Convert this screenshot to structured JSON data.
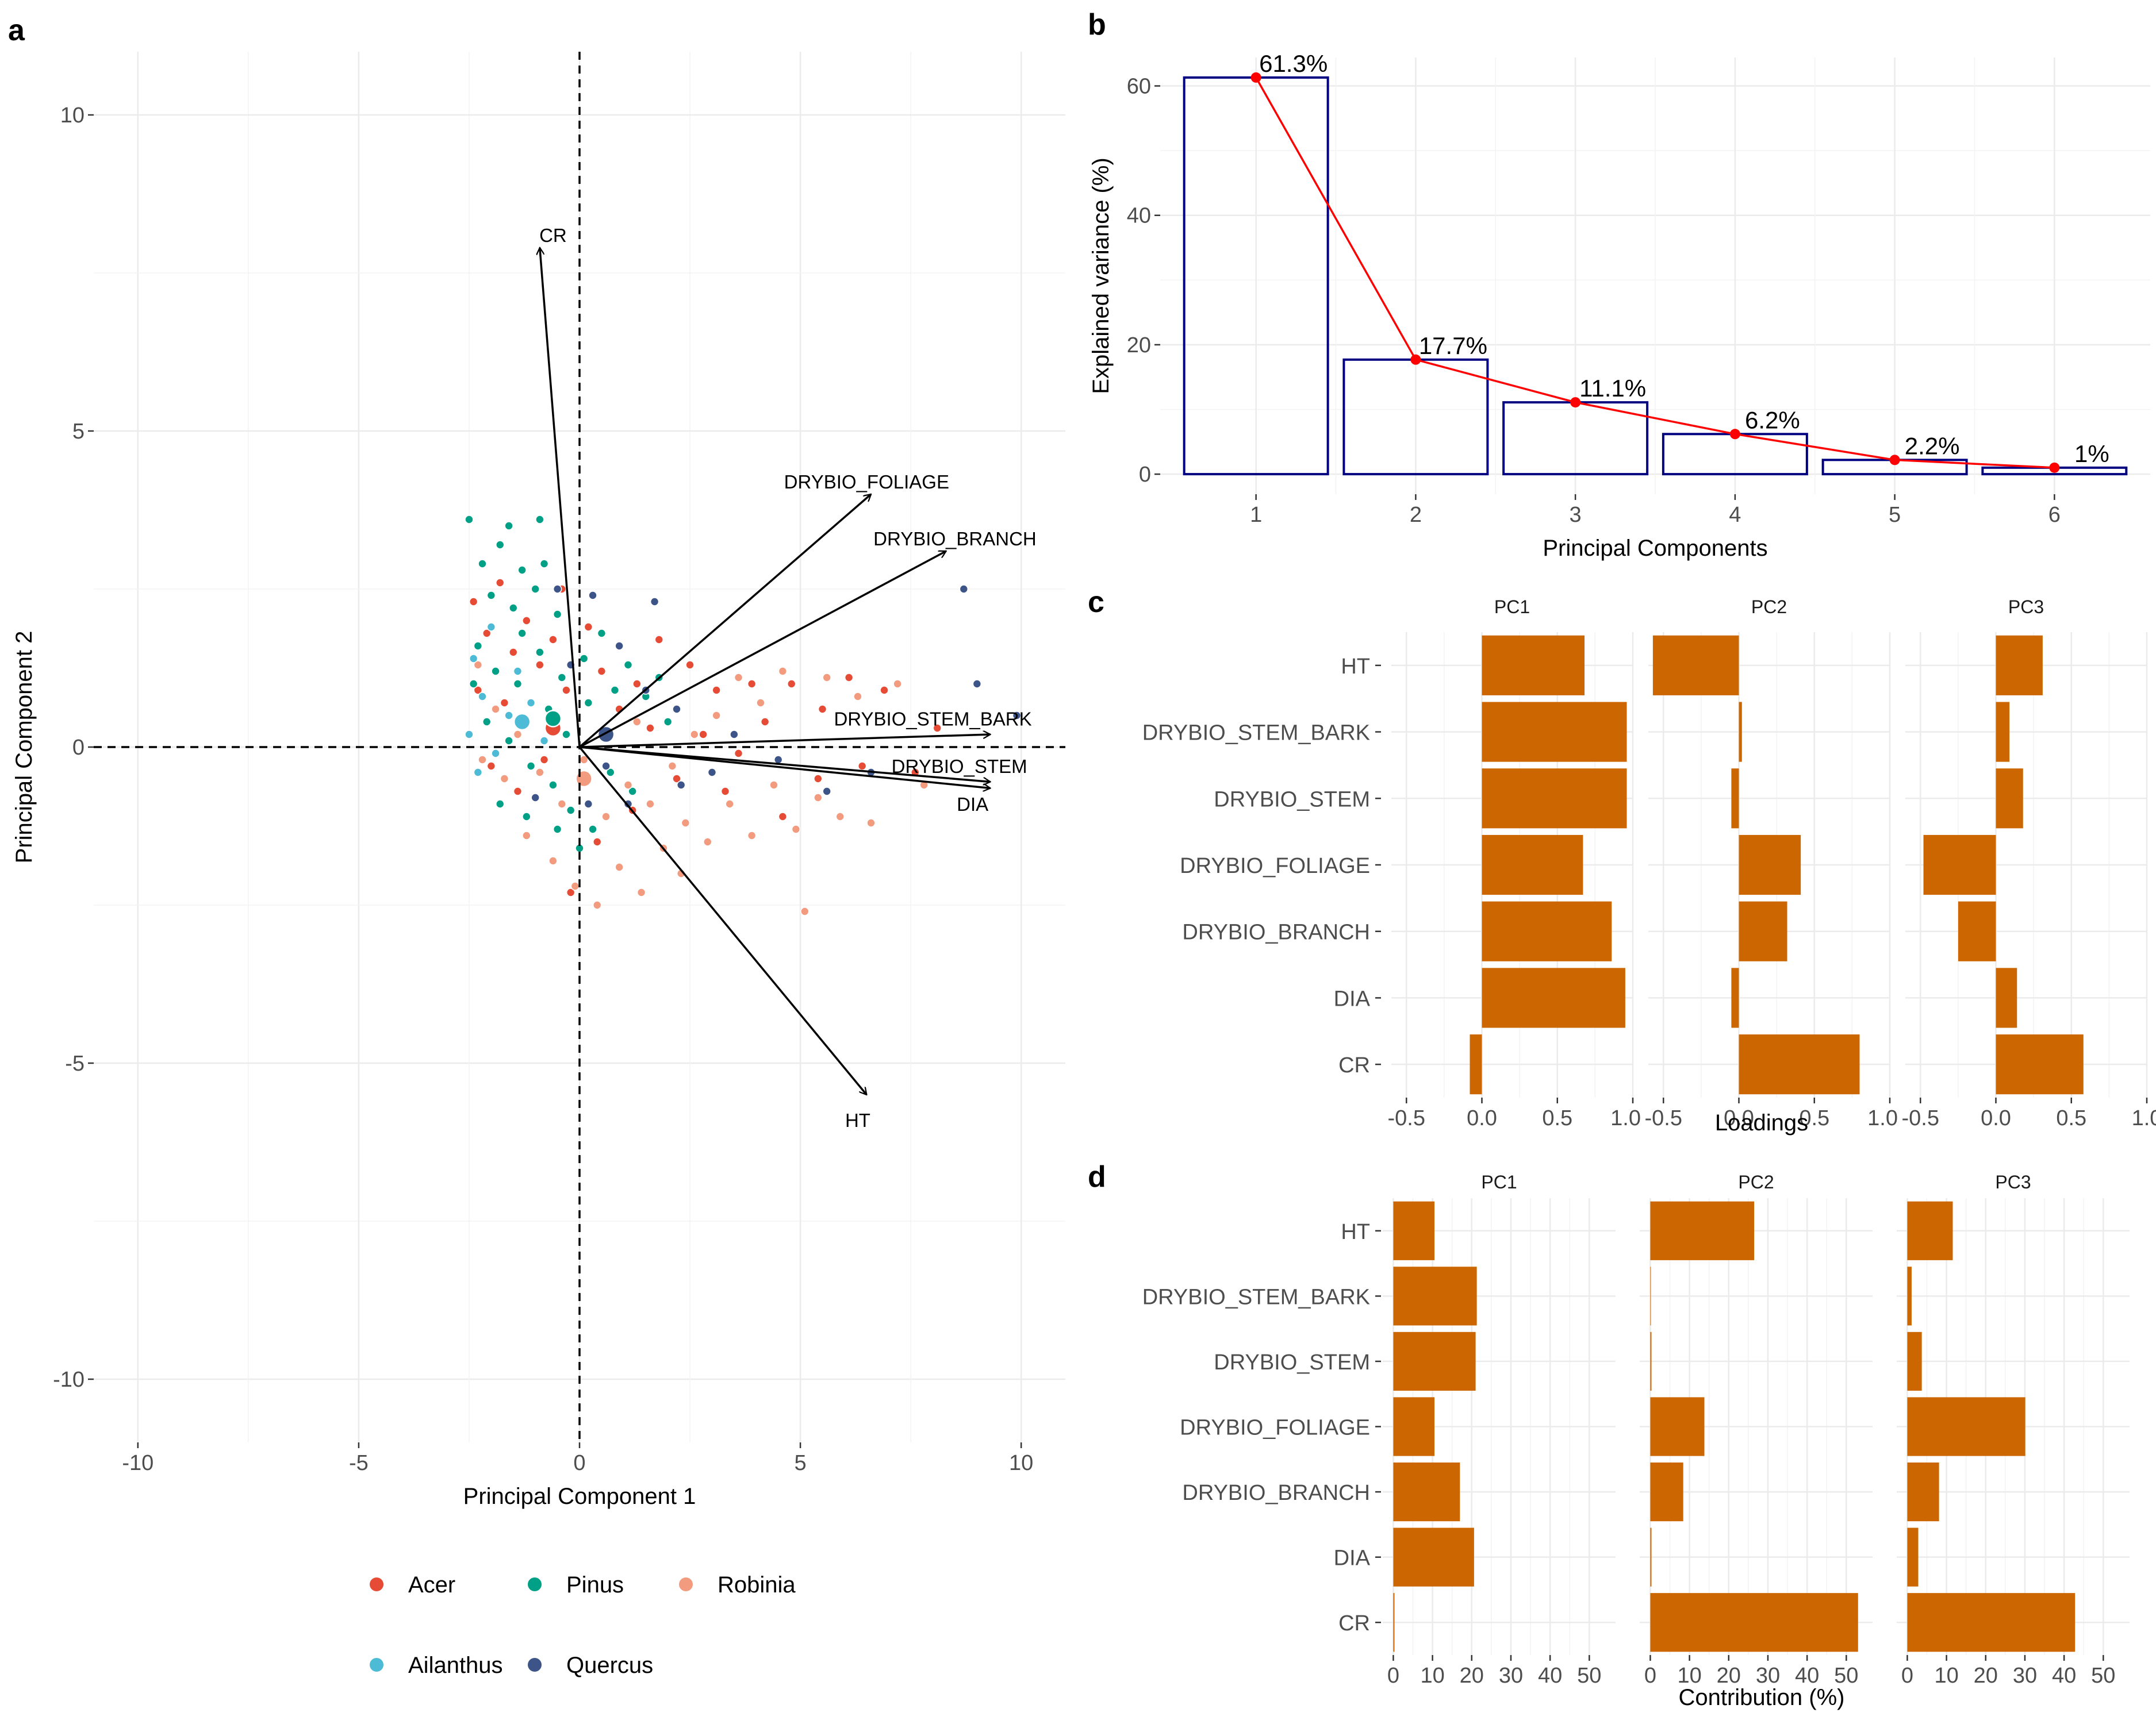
{
  "panels": {
    "a": "a",
    "b": "b",
    "c": "c",
    "d": "d"
  },
  "chart_data": [
    {
      "panel": "a",
      "type": "scatter",
      "xlabel": "Principal Component 1",
      "ylabel": "Principal Component 2",
      "xlim": [
        -11,
        11
      ],
      "ylim": [
        -11,
        11
      ],
      "xticks": [
        -10,
        -5,
        0,
        5,
        10
      ],
      "yticks": [
        -10,
        -5,
        0,
        5,
        10
      ],
      "grid": true,
      "reference_lines": {
        "x": 0,
        "y": 0,
        "style": "dashed"
      },
      "legend": {
        "position": "bottom",
        "entries": [
          {
            "name": "Acer",
            "color": "#E64B35"
          },
          {
            "name": "Pinus",
            "color": "#00A087"
          },
          {
            "name": "Robinia",
            "color": "#F39B7F"
          },
          {
            "name": "Ailanthus",
            "color": "#4DBBD5"
          },
          {
            "name": "Quercus",
            "color": "#3C5488"
          }
        ]
      },
      "centroids": [
        {
          "species": "Acer",
          "x": -0.6,
          "y": 0.3
        },
        {
          "species": "Pinus",
          "x": -0.6,
          "y": 0.45
        },
        {
          "species": "Robinia",
          "x": 0.1,
          "y": -0.5
        },
        {
          "species": "Ailanthus",
          "x": -1.3,
          "y": 0.4
        },
        {
          "species": "Quercus",
          "x": 0.6,
          "y": 0.2
        }
      ],
      "points": [
        {
          "s": "Acer",
          "x": -2.4,
          "y": 2.3
        },
        {
          "s": "Acer",
          "x": -2.1,
          "y": 1.8
        },
        {
          "s": "Acer",
          "x": -1.8,
          "y": 2.6
        },
        {
          "s": "Acer",
          "x": -1.5,
          "y": 1.5
        },
        {
          "s": "Acer",
          "x": -1.2,
          "y": 2.0
        },
        {
          "s": "Acer",
          "x": -0.9,
          "y": 1.3
        },
        {
          "s": "Acer",
          "x": -0.6,
          "y": 1.7
        },
        {
          "s": "Acer",
          "x": -0.3,
          "y": 0.9
        },
        {
          "s": "Acer",
          "x": 0.2,
          "y": 1.9
        },
        {
          "s": "Acer",
          "x": 0.5,
          "y": 1.2
        },
        {
          "s": "Acer",
          "x": 0.9,
          "y": 0.6
        },
        {
          "s": "Acer",
          "x": 1.3,
          "y": 1.0
        },
        {
          "s": "Acer",
          "x": 1.8,
          "y": 1.7
        },
        {
          "s": "Acer",
          "x": 2.5,
          "y": 1.3
        },
        {
          "s": "Acer",
          "x": 3.1,
          "y": 0.9
        },
        {
          "s": "Acer",
          "x": 3.9,
          "y": 1.0
        },
        {
          "s": "Acer",
          "x": 4.2,
          "y": 0.4
        },
        {
          "s": "Acer",
          "x": 4.8,
          "y": 1.0
        },
        {
          "s": "Acer",
          "x": 5.5,
          "y": 0.6
        },
        {
          "s": "Acer",
          "x": 6.1,
          "y": 1.1
        },
        {
          "s": "Acer",
          "x": 6.9,
          "y": 0.9
        },
        {
          "s": "Acer",
          "x": 8.1,
          "y": 0.3
        },
        {
          "s": "Acer",
          "x": 2.2,
          "y": -0.5
        },
        {
          "s": "Acer",
          "x": 3.3,
          "y": -0.7
        },
        {
          "s": "Acer",
          "x": 4.6,
          "y": -1.1
        },
        {
          "s": "Acer",
          "x": 5.4,
          "y": -0.5
        },
        {
          "s": "Acer",
          "x": -2.0,
          "y": -0.3
        },
        {
          "s": "Acer",
          "x": -1.4,
          "y": -0.7
        },
        {
          "s": "Acer",
          "x": -0.8,
          "y": -0.2
        },
        {
          "s": "Acer",
          "x": -1.7,
          "y": 0.7
        },
        {
          "s": "Acer",
          "x": -2.3,
          "y": 0.9
        },
        {
          "s": "Acer",
          "x": -0.4,
          "y": 2.5
        },
        {
          "s": "Acer",
          "x": 0.4,
          "y": -1.5
        },
        {
          "s": "Acer",
          "x": -0.2,
          "y": -2.3
        },
        {
          "s": "Acer",
          "x": 1.2,
          "y": -1.0
        },
        {
          "s": "Acer",
          "x": 2.8,
          "y": 0.2
        },
        {
          "s": "Acer",
          "x": 3.6,
          "y": -0.1
        },
        {
          "s": "Acer",
          "x": 7.6,
          "y": -0.4
        },
        {
          "s": "Acer",
          "x": 6.4,
          "y": -0.3
        },
        {
          "s": "Acer",
          "x": 1.6,
          "y": 0.3
        },
        {
          "s": "Pinus",
          "x": -2.5,
          "y": 3.6
        },
        {
          "s": "Pinus",
          "x": -1.6,
          "y": 3.5
        },
        {
          "s": "Pinus",
          "x": -0.9,
          "y": 3.6
        },
        {
          "s": "Pinus",
          "x": -2.2,
          "y": 2.9
        },
        {
          "s": "Pinus",
          "x": -1.8,
          "y": 3.2
        },
        {
          "s": "Pinus",
          "x": -1.3,
          "y": 2.8
        },
        {
          "s": "Pinus",
          "x": -2.0,
          "y": 2.4
        },
        {
          "s": "Pinus",
          "x": -1.5,
          "y": 2.2
        },
        {
          "s": "Pinus",
          "x": -1.0,
          "y": 2.5
        },
        {
          "s": "Pinus",
          "x": -0.5,
          "y": 2.1
        },
        {
          "s": "Pinus",
          "x": -2.3,
          "y": 1.6
        },
        {
          "s": "Pinus",
          "x": -1.9,
          "y": 1.2
        },
        {
          "s": "Pinus",
          "x": -1.4,
          "y": 1.0
        },
        {
          "s": "Pinus",
          "x": -0.9,
          "y": 1.5
        },
        {
          "s": "Pinus",
          "x": -0.4,
          "y": 1.1
        },
        {
          "s": "Pinus",
          "x": 0.1,
          "y": 1.4
        },
        {
          "s": "Pinus",
          "x": 0.5,
          "y": 1.8
        },
        {
          "s": "Pinus",
          "x": 1.1,
          "y": 1.3
        },
        {
          "s": "Pinus",
          "x": 1.5,
          "y": 0.8
        },
        {
          "s": "Pinus",
          "x": 2.0,
          "y": 0.4
        },
        {
          "s": "Pinus",
          "x": -2.1,
          "y": 0.4
        },
        {
          "s": "Pinus",
          "x": -1.6,
          "y": 0.1
        },
        {
          "s": "Pinus",
          "x": -1.1,
          "y": -0.3
        },
        {
          "s": "Pinus",
          "x": -0.6,
          "y": -0.6
        },
        {
          "s": "Pinus",
          "x": -0.2,
          "y": -1.0
        },
        {
          "s": "Pinus",
          "x": 0.3,
          "y": -1.3
        },
        {
          "s": "Pinus",
          "x": -1.8,
          "y": -0.9
        },
        {
          "s": "Pinus",
          "x": -1.2,
          "y": -1.1
        },
        {
          "s": "Pinus",
          "x": -0.7,
          "y": 0.6
        },
        {
          "s": "Pinus",
          "x": -0.3,
          "y": 0.2
        },
        {
          "s": "Pinus",
          "x": 0.7,
          "y": -0.4
        },
        {
          "s": "Pinus",
          "x": 1.2,
          "y": -0.7
        },
        {
          "s": "Pinus",
          "x": 0.8,
          "y": 0.9
        },
        {
          "s": "Pinus",
          "x": -2.4,
          "y": 1.0
        },
        {
          "s": "Pinus",
          "x": -1.3,
          "y": 1.8
        },
        {
          "s": "Pinus",
          "x": -0.8,
          "y": 2.9
        },
        {
          "s": "Pinus",
          "x": 0.0,
          "y": -1.6
        },
        {
          "s": "Pinus",
          "x": -0.5,
          "y": -1.3
        },
        {
          "s": "Pinus",
          "x": 1.8,
          "y": 1.1
        },
        {
          "s": "Pinus",
          "x": 0.2,
          "y": 0.7
        },
        {
          "s": "Robinia",
          "x": -2.2,
          "y": -0.2
        },
        {
          "s": "Robinia",
          "x": -1.7,
          "y": -0.5
        },
        {
          "s": "Robinia",
          "x": -1.2,
          "y": -1.4
        },
        {
          "s": "Robinia",
          "x": -0.6,
          "y": -1.8
        },
        {
          "s": "Robinia",
          "x": -0.1,
          "y": -2.2
        },
        {
          "s": "Robinia",
          "x": 0.4,
          "y": -2.5
        },
        {
          "s": "Robinia",
          "x": 0.9,
          "y": -1.9
        },
        {
          "s": "Robinia",
          "x": 1.4,
          "y": -2.3
        },
        {
          "s": "Robinia",
          "x": 1.9,
          "y": -1.6
        },
        {
          "s": "Robinia",
          "x": 2.4,
          "y": -1.2
        },
        {
          "s": "Robinia",
          "x": 2.9,
          "y": -1.5
        },
        {
          "s": "Robinia",
          "x": 3.4,
          "y": -0.9
        },
        {
          "s": "Robinia",
          "x": 3.9,
          "y": -1.4
        },
        {
          "s": "Robinia",
          "x": 4.4,
          "y": -0.6
        },
        {
          "s": "Robinia",
          "x": 4.9,
          "y": -1.3
        },
        {
          "s": "Robinia",
          "x": 5.4,
          "y": -0.8
        },
        {
          "s": "Robinia",
          "x": 5.9,
          "y": -1.1
        },
        {
          "s": "Robinia",
          "x": 6.6,
          "y": -1.2
        },
        {
          "s": "Robinia",
          "x": 7.8,
          "y": -0.6
        },
        {
          "s": "Robinia",
          "x": 5.1,
          "y": -2.6
        },
        {
          "s": "Robinia",
          "x": 0.6,
          "y": -1.1
        },
        {
          "s": "Robinia",
          "x": 1.1,
          "y": -0.6
        },
        {
          "s": "Robinia",
          "x": 1.6,
          "y": -0.9
        },
        {
          "s": "Robinia",
          "x": 2.1,
          "y": -0.3
        },
        {
          "s": "Robinia",
          "x": 2.6,
          "y": 0.2
        },
        {
          "s": "Robinia",
          "x": 3.1,
          "y": 0.5
        },
        {
          "s": "Robinia",
          "x": 3.6,
          "y": 1.1
        },
        {
          "s": "Robinia",
          "x": 4.1,
          "y": 0.7
        },
        {
          "s": "Robinia",
          "x": 4.6,
          "y": 1.2
        },
        {
          "s": "Robinia",
          "x": 5.6,
          "y": 1.1
        },
        {
          "s": "Robinia",
          "x": 6.3,
          "y": 0.8
        },
        {
          "s": "Robinia",
          "x": 7.2,
          "y": 1.0
        },
        {
          "s": "Robinia",
          "x": -0.4,
          "y": -0.9
        },
        {
          "s": "Robinia",
          "x": -0.9,
          "y": -0.4
        },
        {
          "s": "Robinia",
          "x": 0.1,
          "y": -0.2
        },
        {
          "s": "Robinia",
          "x": -1.9,
          "y": 0.6
        },
        {
          "s": "Robinia",
          "x": -2.3,
          "y": 1.3
        },
        {
          "s": "Robinia",
          "x": -1.4,
          "y": 0.2
        },
        {
          "s": "Robinia",
          "x": 1.3,
          "y": 0.4
        },
        {
          "s": "Robinia",
          "x": 2.3,
          "y": -2.0
        },
        {
          "s": "Ailanthus",
          "x": -2.5,
          "y": 0.2
        },
        {
          "s": "Ailanthus",
          "x": -2.2,
          "y": 0.8
        },
        {
          "s": "Ailanthus",
          "x": -1.9,
          "y": -0.1
        },
        {
          "s": "Ailanthus",
          "x": -1.6,
          "y": 0.5
        },
        {
          "s": "Ailanthus",
          "x": -2.4,
          "y": 1.4
        },
        {
          "s": "Ailanthus",
          "x": -2.0,
          "y": 1.9
        },
        {
          "s": "Ailanthus",
          "x": -1.1,
          "y": 0.7
        },
        {
          "s": "Ailanthus",
          "x": -0.8,
          "y": 0.1
        },
        {
          "s": "Ailanthus",
          "x": -2.3,
          "y": -0.4
        },
        {
          "s": "Ailanthus",
          "x": -1.4,
          "y": 1.2
        },
        {
          "s": "Quercus",
          "x": -0.5,
          "y": 2.5
        },
        {
          "s": "Quercus",
          "x": 0.3,
          "y": 2.4
        },
        {
          "s": "Quercus",
          "x": 1.7,
          "y": 2.3
        },
        {
          "s": "Quercus",
          "x": 0.9,
          "y": 1.6
        },
        {
          "s": "Quercus",
          "x": 1.5,
          "y": 0.9
        },
        {
          "s": "Quercus",
          "x": 2.2,
          "y": 0.6
        },
        {
          "s": "Quercus",
          "x": 3.5,
          "y": 0.2
        },
        {
          "s": "Quercus",
          "x": 4.5,
          "y": -0.2
        },
        {
          "s": "Quercus",
          "x": 5.6,
          "y": -0.7
        },
        {
          "s": "Quercus",
          "x": 6.6,
          "y": -0.4
        },
        {
          "s": "Quercus",
          "x": 8.7,
          "y": 2.5
        },
        {
          "s": "Quercus",
          "x": 9.0,
          "y": 1.0
        },
        {
          "s": "Quercus",
          "x": 9.9,
          "y": 0.5
        },
        {
          "s": "Quercus",
          "x": 0.6,
          "y": -0.3
        },
        {
          "s": "Quercus",
          "x": 1.1,
          "y": -0.9
        },
        {
          "s": "Quercus",
          "x": 2.3,
          "y": -0.6
        },
        {
          "s": "Quercus",
          "x": -1.0,
          "y": -0.8
        },
        {
          "s": "Quercus",
          "x": 0.2,
          "y": -0.9
        },
        {
          "s": "Quercus",
          "x": -0.2,
          "y": 1.3
        },
        {
          "s": "Quercus",
          "x": 3.0,
          "y": -0.4
        }
      ],
      "loadings": [
        {
          "name": "CR",
          "x": -0.9,
          "y": 7.9,
          "label_x": -0.6,
          "label_y": 8.1
        },
        {
          "name": "DRYBIO_FOLIAGE",
          "x": 6.6,
          "y": 4.0,
          "label_x": 6.5,
          "label_y": 4.2
        },
        {
          "name": "DRYBIO_BRANCH",
          "x": 8.3,
          "y": 3.1,
          "label_x": 8.5,
          "label_y": 3.3
        },
        {
          "name": "DRYBIO_STEM_BARK",
          "x": 9.3,
          "y": 0.2,
          "label_x": 8.0,
          "label_y": 0.45
        },
        {
          "name": "DRYBIO_STEM",
          "x": 9.3,
          "y": -0.55,
          "label_x": 8.6,
          "label_y": -0.3
        },
        {
          "name": "DIA",
          "x": 9.3,
          "y": -0.65,
          "label_x": 8.9,
          "label_y": -0.9
        },
        {
          "name": "HT",
          "x": 6.5,
          "y": -5.5,
          "label_x": 6.3,
          "label_y": -5.9
        }
      ]
    },
    {
      "panel": "b",
      "type": "bar",
      "xlabel": "Principal Components",
      "ylabel": "Explained variance (%)",
      "categories": [
        "1",
        "2",
        "3",
        "4",
        "5",
        "6"
      ],
      "values": [
        61.3,
        17.7,
        11.1,
        6.2,
        2.2,
        1
      ],
      "value_labels": [
        "61.3%",
        "17.7%",
        "11.1%",
        "6.2%",
        "2.2%",
        "1%"
      ],
      "ylim": [
        -3.1,
        64.4
      ],
      "yticks": [
        0,
        20,
        40,
        60
      ],
      "bar_outline_color": "#000080",
      "line_color": "#FF0000",
      "grid": true
    },
    {
      "panel": "c",
      "type": "bar",
      "orientation": "horizontal",
      "xlabel": "Loadings",
      "categories": [
        "HT",
        "DRYBIO_STEM_BARK",
        "DRYBIO_STEM",
        "DRYBIO_FOLIAGE",
        "DRYBIO_BRANCH",
        "DIA",
        "CR"
      ],
      "xlim": [
        -0.6,
        1.0
      ],
      "xticks": [
        -0.5,
        0.0,
        0.5,
        1.0
      ],
      "xtick_labels": [
        "-0.5",
        "0.0",
        "0.5",
        "1.0"
      ],
      "bar_color": "#CC6600",
      "facets": [
        {
          "name": "PC1",
          "values": [
            0.68,
            0.96,
            0.96,
            0.67,
            0.86,
            0.95,
            -0.08
          ]
        },
        {
          "name": "PC2",
          "values": [
            -0.57,
            0.02,
            -0.05,
            0.41,
            0.32,
            -0.05,
            0.8
          ]
        },
        {
          "name": "PC3",
          "values": [
            0.31,
            0.09,
            0.18,
            -0.48,
            -0.25,
            0.14,
            0.58
          ]
        }
      ]
    },
    {
      "panel": "d",
      "type": "bar",
      "orientation": "horizontal",
      "xlabel": "Contribution (%)",
      "categories": [
        "HT",
        "DRYBIO_STEM_BARK",
        "DRYBIO_STEM",
        "DRYBIO_FOLIAGE",
        "DRYBIO_BRANCH",
        "DIA",
        "CR"
      ],
      "xlim": [
        -2.7,
        56.7
      ],
      "xticks": [
        0,
        10,
        20,
        30,
        40,
        50
      ],
      "bar_color": "#CC6600",
      "facets": [
        {
          "name": "PC1",
          "values": [
            10.5,
            21.3,
            21.0,
            10.5,
            17.0,
            20.6,
            0.3
          ]
        },
        {
          "name": "PC2",
          "values": [
            26.5,
            0.1,
            0.3,
            13.8,
            8.4,
            0.3,
            53.0
          ]
        },
        {
          "name": "PC3",
          "values": [
            11.6,
            1.1,
            3.7,
            30.1,
            8.1,
            2.8,
            42.8
          ]
        }
      ]
    }
  ]
}
